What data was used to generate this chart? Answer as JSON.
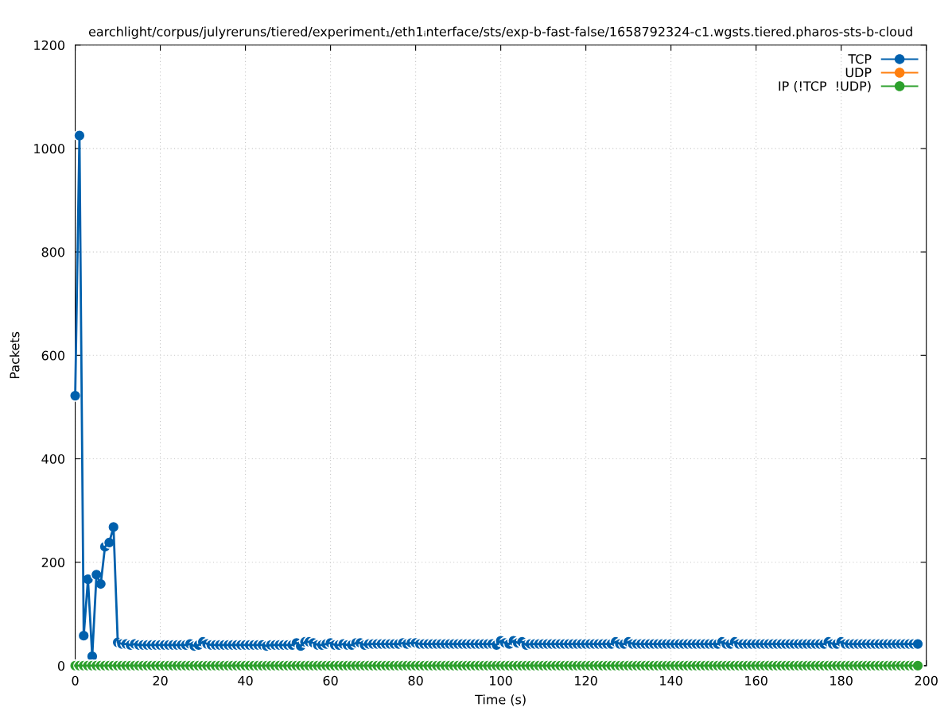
{
  "chart_data": {
    "type": "line",
    "title": "earchlight/corpus/julyreruns/tiered/experiment₁/eth1ᵢnterface/sts/exp-b-fast-false/1658792324-c1.wgsts.tiered.pharos-sts-b-cloud",
    "xlabel": "Time (s)",
    "ylabel": "Packets",
    "x": [
      0,
      1,
      2,
      3,
      4,
      5,
      6,
      7,
      8,
      9,
      10,
      11,
      12,
      13,
      14,
      15,
      16,
      17,
      18,
      19,
      20,
      21,
      22,
      23,
      24,
      25,
      26,
      27,
      28,
      29,
      30,
      31,
      32,
      33,
      34,
      35,
      36,
      37,
      38,
      39,
      40,
      41,
      42,
      43,
      44,
      45,
      46,
      47,
      48,
      49,
      50,
      51,
      52,
      53,
      54,
      55,
      56,
      57,
      58,
      59,
      60,
      61,
      62,
      63,
      64,
      65,
      66,
      67,
      68,
      69,
      70,
      71,
      72,
      73,
      74,
      75,
      76,
      77,
      78,
      79,
      80,
      81,
      82,
      83,
      84,
      85,
      86,
      87,
      88,
      89,
      90,
      91,
      92,
      93,
      94,
      95,
      96,
      97,
      98,
      99,
      100,
      101,
      102,
      103,
      104,
      105,
      106,
      107,
      108,
      109,
      110,
      111,
      112,
      113,
      114,
      115,
      116,
      117,
      118,
      119,
      120,
      121,
      122,
      123,
      124,
      125,
      126,
      127,
      128,
      129,
      130,
      131,
      132,
      133,
      134,
      135,
      136,
      137,
      138,
      139,
      140,
      141,
      142,
      143,
      144,
      145,
      146,
      147,
      148,
      149,
      150,
      151,
      152,
      153,
      154,
      155,
      156,
      157,
      158,
      159,
      160,
      161,
      162,
      163,
      164,
      165,
      166,
      167,
      168,
      169,
      170,
      171,
      172,
      173,
      174,
      175,
      176,
      177,
      178,
      179,
      180,
      181,
      182,
      183,
      184,
      185,
      186,
      187,
      188,
      189,
      190,
      191,
      192,
      193,
      194,
      195,
      196,
      197,
      198
    ],
    "series": [
      {
        "name": "TCP",
        "color": "#0060ad",
        "values": [
          522,
          1025,
          58,
          167,
          18,
          176,
          158,
          230,
          238,
          268,
          45,
          42,
          42,
          40,
          42,
          40,
          40,
          40,
          40,
          40,
          40,
          40,
          40,
          40,
          40,
          40,
          40,
          42,
          38,
          40,
          46,
          42,
          40,
          40,
          40,
          40,
          40,
          40,
          40,
          40,
          40,
          40,
          40,
          40,
          40,
          38,
          40,
          40,
          40,
          40,
          40,
          40,
          44,
          38,
          46,
          46,
          44,
          40,
          40,
          42,
          44,
          40,
          40,
          42,
          40,
          40,
          44,
          44,
          40,
          42,
          42,
          42,
          42,
          42,
          42,
          42,
          42,
          44,
          42,
          44,
          44,
          42,
          42,
          42,
          42,
          42,
          42,
          42,
          42,
          42,
          42,
          42,
          42,
          42,
          42,
          42,
          42,
          42,
          42,
          40,
          48,
          44,
          42,
          48,
          44,
          46,
          40,
          42,
          42,
          42,
          42,
          42,
          42,
          42,
          42,
          42,
          42,
          42,
          42,
          42,
          42,
          42,
          42,
          42,
          42,
          42,
          42,
          46,
          42,
          42,
          46,
          42,
          42,
          42,
          42,
          42,
          42,
          42,
          42,
          42,
          42,
          42,
          42,
          42,
          42,
          42,
          42,
          42,
          42,
          42,
          42,
          42,
          46,
          42,
          42,
          46,
          42,
          42,
          42,
          42,
          42,
          42,
          42,
          42,
          42,
          42,
          42,
          42,
          42,
          42,
          42,
          42,
          42,
          42,
          42,
          42,
          42,
          46,
          42,
          42,
          46,
          42,
          42,
          42,
          42,
          42,
          42,
          42,
          42,
          42,
          42,
          42,
          42,
          42,
          42,
          42,
          42,
          42,
          42
        ]
      },
      {
        "name": "UDP",
        "color": "#ff7f0e",
        "values": [
          null,
          null,
          null,
          null,
          null,
          null,
          null,
          null,
          null,
          null,
          null,
          null,
          null,
          null,
          null,
          null,
          null,
          null,
          null,
          null,
          null,
          null,
          null,
          null,
          null,
          null,
          null,
          null,
          null,
          null,
          null,
          null,
          null,
          null,
          null,
          null,
          null,
          null,
          null,
          null,
          null,
          null,
          null,
          null,
          null,
          null,
          null,
          null,
          null,
          null,
          null,
          null,
          null,
          null,
          null,
          null,
          null,
          null,
          null,
          null,
          null,
          null,
          null,
          null,
          null,
          null,
          null,
          null,
          null,
          null,
          null,
          null,
          null,
          null,
          null,
          null,
          null,
          null,
          null,
          null,
          null,
          null,
          null,
          null,
          null,
          null,
          null,
          null,
          null,
          null,
          null,
          null,
          null,
          null,
          null,
          null,
          null,
          null,
          null,
          null,
          null,
          null,
          null,
          null,
          null,
          null,
          null,
          null,
          null,
          null,
          null,
          null,
          null,
          null,
          null,
          null,
          null,
          null,
          null,
          null,
          null,
          null,
          null,
          null,
          null,
          null,
          null,
          null,
          null,
          null,
          null,
          null,
          null,
          null,
          null,
          null,
          null,
          null,
          null,
          null,
          null,
          null,
          null,
          null,
          null,
          null,
          null,
          null,
          null,
          null,
          null,
          null,
          null,
          null,
          null,
          null,
          null,
          null,
          null,
          null,
          null,
          null,
          null,
          null,
          null,
          null,
          null,
          null,
          null,
          null,
          null,
          null,
          null,
          null,
          null,
          null,
          null,
          null,
          null,
          null,
          null,
          null,
          null,
          null,
          null,
          null,
          null,
          null,
          null,
          null,
          null,
          null,
          null,
          null,
          null,
          null,
          null,
          null,
          null
        ]
      },
      {
        "name": "IP (!TCP  !UDP)",
        "color": "#2ca02c",
        "values": [
          0,
          0,
          0,
          0,
          0,
          0,
          0,
          0,
          0,
          0,
          0,
          0,
          0,
          0,
          0,
          0,
          0,
          0,
          0,
          0,
          0,
          0,
          0,
          0,
          0,
          0,
          0,
          0,
          0,
          0,
          0,
          0,
          0,
          0,
          0,
          0,
          0,
          0,
          0,
          0,
          0,
          0,
          0,
          0,
          0,
          0,
          0,
          0,
          0,
          0,
          0,
          0,
          0,
          0,
          0,
          0,
          0,
          0,
          0,
          0,
          0,
          0,
          0,
          0,
          0,
          0,
          0,
          0,
          0,
          0,
          0,
          0,
          0,
          0,
          0,
          0,
          0,
          0,
          0,
          0,
          0,
          0,
          0,
          0,
          0,
          0,
          0,
          0,
          0,
          0,
          0,
          0,
          0,
          0,
          0,
          0,
          0,
          0,
          0,
          0,
          0,
          0,
          0,
          0,
          0,
          0,
          0,
          0,
          0,
          0,
          0,
          0,
          0,
          0,
          0,
          0,
          0,
          0,
          0,
          0,
          0,
          0,
          0,
          0,
          0,
          0,
          0,
          0,
          0,
          0,
          0,
          0,
          0,
          0,
          0,
          0,
          0,
          0,
          0,
          0,
          0,
          0,
          0,
          0,
          0,
          0,
          0,
          0,
          0,
          0,
          0,
          0,
          0,
          0,
          0,
          0,
          0,
          0,
          0,
          0,
          0,
          0,
          0,
          0,
          0,
          0,
          0,
          0,
          0,
          0,
          0,
          0,
          0,
          0,
          0,
          0,
          0,
          0,
          0,
          0,
          0,
          0,
          0,
          0,
          0,
          0,
          0,
          0,
          0,
          0,
          0,
          0,
          0,
          0,
          0,
          0,
          0,
          0,
          0
        ]
      }
    ],
    "xlim": [
      0,
      200
    ],
    "xticks": [
      0,
      20,
      40,
      60,
      80,
      100,
      120,
      140,
      160,
      180,
      200
    ],
    "ylim": [
      0,
      1200
    ],
    "yticks": [
      0,
      200,
      400,
      600,
      800,
      1000,
      1200
    ],
    "grid": true,
    "legend": "top right",
    "marker": "circle",
    "line_style": "solid"
  }
}
